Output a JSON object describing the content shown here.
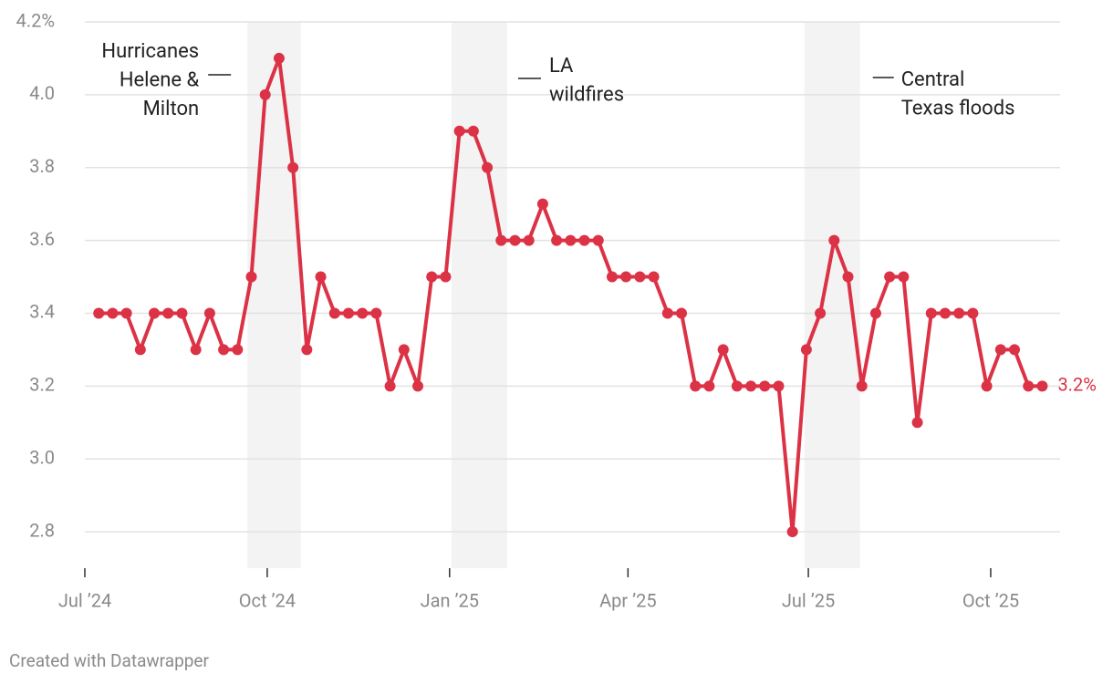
{
  "chart_data": {
    "type": "line",
    "x": [
      "2024-07-08",
      "2024-07-15",
      "2024-07-22",
      "2024-07-29",
      "2024-08-05",
      "2024-08-12",
      "2024-08-19",
      "2024-08-26",
      "2024-09-02",
      "2024-09-09",
      "2024-09-16",
      "2024-09-23",
      "2024-09-30",
      "2024-10-07",
      "2024-10-14",
      "2024-10-21",
      "2024-10-28",
      "2024-11-04",
      "2024-11-11",
      "2024-11-18",
      "2024-11-25",
      "2024-12-02",
      "2024-12-09",
      "2024-12-16",
      "2024-12-23",
      "2024-12-30",
      "2025-01-06",
      "2025-01-13",
      "2025-01-20",
      "2025-01-27",
      "2025-02-03",
      "2025-02-10",
      "2025-02-17",
      "2025-02-24",
      "2025-03-03",
      "2025-03-10",
      "2025-03-17",
      "2025-03-24",
      "2025-03-31",
      "2025-04-07",
      "2025-04-14",
      "2025-04-21",
      "2025-04-28",
      "2025-05-05",
      "2025-05-12",
      "2025-05-19",
      "2025-05-26",
      "2025-06-02",
      "2025-06-09",
      "2025-06-16",
      "2025-06-23",
      "2025-06-30",
      "2025-07-07",
      "2025-07-14",
      "2025-07-21",
      "2025-07-28",
      "2025-08-04",
      "2025-08-11",
      "2025-08-18",
      "2025-08-25",
      "2025-09-01",
      "2025-09-08",
      "2025-09-15",
      "2025-09-22",
      "2025-09-29",
      "2025-10-06",
      "2025-10-13",
      "2025-10-20",
      "2025-10-27"
    ],
    "series": [
      {
        "color": "#dc3246",
        "values": [
          3.4,
          3.4,
          3.4,
          3.3,
          3.4,
          3.4,
          3.4,
          3.3,
          3.4,
          3.3,
          3.3,
          3.5,
          4.0,
          4.1,
          3.8,
          3.3,
          3.5,
          3.4,
          3.4,
          3.4,
          3.4,
          3.2,
          3.3,
          3.2,
          3.5,
          3.5,
          3.9,
          3.9,
          3.8,
          3.6,
          3.6,
          3.6,
          3.7,
          3.6,
          3.6,
          3.6,
          3.6,
          3.5,
          3.5,
          3.5,
          3.5,
          3.4,
          3.4,
          3.2,
          3.2,
          3.3,
          3.2,
          3.2,
          3.2,
          3.2,
          2.8,
          3.3,
          3.4,
          3.6,
          3.5,
          3.2,
          3.4,
          3.5,
          3.5,
          3.1,
          3.4,
          3.4,
          3.4,
          3.4,
          3.2,
          3.3,
          3.3,
          3.2,
          3.2
        ],
        "value_labels": [
          null,
          null,
          null,
          null,
          null,
          null,
          null,
          null,
          null,
          null,
          null,
          null,
          null,
          null,
          null,
          null,
          null,
          null,
          null,
          null,
          null,
          null,
          null,
          null,
          null,
          null,
          null,
          null,
          null,
          null,
          null,
          null,
          null,
          null,
          null,
          null,
          null,
          null,
          null,
          null,
          null,
          null,
          null,
          null,
          null,
          null,
          null,
          null,
          null,
          null,
          null,
          null,
          null,
          null,
          null,
          null,
          null,
          null,
          null,
          null,
          null,
          null,
          null,
          null,
          null,
          null,
          null,
          null,
          "3.2%"
        ]
      }
    ],
    "xlim": [
      "2024-07-01",
      "2025-11-05"
    ],
    "xticks": [
      {
        "value": "2024-07-01",
        "label": "Jul ’24"
      },
      {
        "value": "2024-10-01",
        "label": "Oct ’24"
      },
      {
        "value": "2025-01-01",
        "label": "Jan ’25"
      },
      {
        "value": "2025-04-01",
        "label": "Apr ’25"
      },
      {
        "value": "2025-07-01",
        "label": "Jul ’25"
      },
      {
        "value": "2025-10-01",
        "label": "Oct ’25"
      }
    ],
    "ylim": [
      2.7,
      4.2
    ],
    "yticks": [
      2.8,
      {
        "value": 3.0,
        "label": "3.0"
      },
      3.2,
      3.4,
      3.6,
      3.8,
      {
        "value": 4.0,
        "label": "4.0"
      },
      {
        "value": 4.2,
        "label": "4.2%"
      }
    ],
    "grid": true,
    "annotations": [
      {
        "start": "2024-09-21",
        "end": "2024-10-18",
        "lines": [
          "Hurricanes",
          "Helene &",
          "Milton"
        ]
      },
      {
        "start": "2025-01-02",
        "end": "2025-01-30",
        "lines": [
          "LA",
          "wildfires"
        ]
      },
      {
        "start": "2025-06-29",
        "end": "2025-07-27",
        "lines": [
          "Central",
          "Texas floods"
        ]
      }
    ],
    "credit": "Created with Datawrapper"
  }
}
